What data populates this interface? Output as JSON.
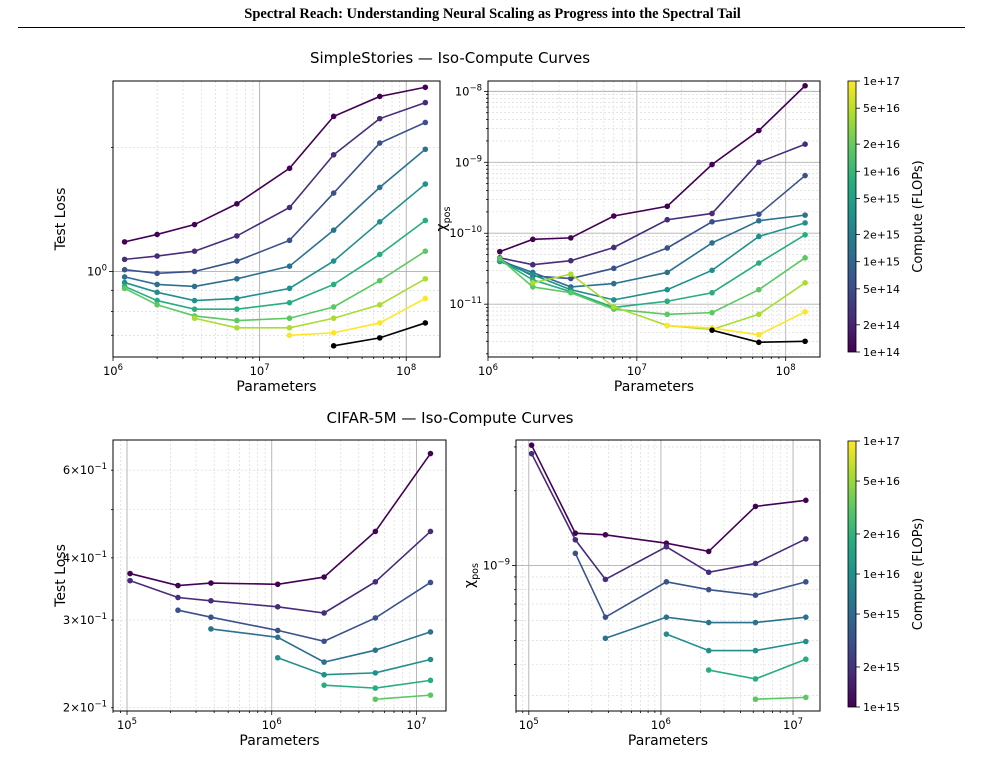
{
  "header": {
    "title": "Spectral Reach: Understanding Neural Scaling as Progress into the Spectral Tail"
  },
  "colors": {
    "series": [
      "#440154",
      "#472c7a",
      "#3b518b",
      "#2c718e",
      "#21908d",
      "#27ad81",
      "#5cc863",
      "#aadc32",
      "#fde725"
    ]
  },
  "chart_data": [
    {
      "id": "ss_loss",
      "type": "line",
      "suptitle": "SimpleStories — Iso-Compute Curves",
      "xlabel": "Parameters",
      "ylabel": "Test Loss",
      "xscale": "log",
      "yscale": "log",
      "xlim": [
        1000000,
        170000000
      ],
      "ylim": [
        0.62,
        2.9
      ],
      "xticks": [
        {
          "v": 1000000,
          "l": "10^6"
        },
        {
          "v": 10000000,
          "l": "10^7"
        },
        {
          "v": 100000000,
          "l": "10^8"
        }
      ],
      "yticks": [
        {
          "v": 1.0,
          "l": "10^0"
        }
      ],
      "grid": true,
      "x": [
        1200000,
        2000000,
        3600000,
        7000000,
        16000000,
        32000000,
        66000000,
        135000000
      ],
      "series": [
        {
          "values": [
            1.18,
            1.23,
            1.3,
            1.46,
            1.78,
            2.38,
            2.66,
            2.8
          ]
        },
        {
          "values": [
            1.07,
            1.09,
            1.12,
            1.22,
            1.43,
            1.92,
            2.35,
            2.57
          ]
        },
        {
          "values": [
            1.01,
            0.99,
            1.0,
            1.06,
            1.19,
            1.55,
            2.05,
            2.3
          ]
        },
        {
          "values": [
            0.97,
            0.93,
            0.92,
            0.96,
            1.03,
            1.26,
            1.6,
            1.98
          ]
        },
        {
          "values": [
            0.94,
            0.89,
            0.85,
            0.86,
            0.91,
            1.06,
            1.32,
            1.63
          ]
        },
        {
          "values": [
            0.92,
            0.85,
            0.81,
            0.81,
            0.84,
            0.93,
            1.1,
            1.33
          ]
        },
        {
          "values": [
            0.91,
            0.83,
            0.78,
            0.76,
            0.77,
            0.82,
            0.95,
            1.12
          ]
        },
        {
          "values": [
            null,
            null,
            0.77,
            0.73,
            0.73,
            0.77,
            0.83,
            0.96
          ]
        },
        {
          "values": [
            null,
            null,
            null,
            null,
            0.7,
            0.71,
            0.75,
            0.86
          ]
        },
        {
          "values": [
            null,
            null,
            null,
            null,
            null,
            0.66,
            0.69,
            0.75
          ]
        }
      ]
    },
    {
      "id": "ss_chi",
      "type": "line",
      "xlabel": "Parameters",
      "ylabel": "χ",
      "ylabel_sub": "pos",
      "xscale": "log",
      "yscale": "log",
      "xlim": [
        1000000,
        170000000
      ],
      "ylim": [
        1.8e-12,
        1.4e-08
      ],
      "xticks": [
        {
          "v": 1000000,
          "l": "10^6"
        },
        {
          "v": 10000000,
          "l": "10^7"
        },
        {
          "v": 100000000,
          "l": "10^8"
        }
      ],
      "yticks": [
        {
          "v": 1e-11,
          "l": "10^-11"
        },
        {
          "v": 1e-10,
          "l": "10^-10"
        },
        {
          "v": 1e-09,
          "l": "10^-9"
        },
        {
          "v": 1e-08,
          "l": "10^-8"
        }
      ],
      "grid": true,
      "x": [
        1200000,
        2000000,
        3600000,
        7000000,
        16000000,
        32000000,
        66000000,
        135000000
      ],
      "series": [
        {
          "values": [
            5.5e-11,
            8.2e-11,
            8.6e-11,
            1.75e-10,
            2.4e-10,
            9.3e-10,
            2.8e-09,
            1.2e-08
          ]
        },
        {
          "values": [
            4.5e-11,
            3.6e-11,
            4.1e-11,
            6.3e-11,
            1.55e-10,
            1.9e-10,
            1e-09,
            1.8e-09
          ]
        },
        {
          "values": [
            4.3e-11,
            2.5e-11,
            2.3e-11,
            3.2e-11,
            6.2e-11,
            1.45e-10,
            1.85e-10,
            6.5e-10
          ]
        },
        {
          "values": [
            4.1e-11,
            2.8e-11,
            1.75e-11,
            1.95e-11,
            2.8e-11,
            7.3e-11,
            1.5e-10,
            1.8e-10
          ]
        },
        {
          "values": [
            4e-11,
            2.6e-11,
            1.6e-11,
            1.15e-11,
            1.6e-11,
            3e-11,
            9e-11,
            1.4e-10
          ]
        },
        {
          "values": [
            4.2e-11,
            2.2e-11,
            1.5e-11,
            9e-12,
            1.1e-11,
            1.45e-11,
            3.8e-11,
            9.5e-11
          ]
        },
        {
          "values": [
            4.4e-11,
            1.75e-11,
            1.45e-11,
            8.5e-12,
            7.2e-12,
            7.6e-12,
            1.6e-11,
            4.5e-11
          ]
        },
        {
          "values": [
            null,
            2e-11,
            2.65e-11,
            9.2e-12,
            5e-12,
            4.4e-12,
            7.2e-12,
            2e-11
          ]
        },
        {
          "values": [
            null,
            null,
            null,
            null,
            5e-12,
            4.6e-12,
            3.7e-12,
            7.8e-12
          ]
        },
        {
          "values": [
            null,
            null,
            null,
            null,
            null,
            4.3e-12,
            2.9e-12,
            3e-12
          ]
        }
      ]
    },
    {
      "id": "cifar_loss",
      "type": "line",
      "suptitle": "CIFAR-5M — Iso-Compute Curves",
      "xlabel": "Parameters",
      "ylabel": "Test Loss",
      "xscale": "log",
      "yscale": "log",
      "xlim": [
        80000,
        16000000
      ],
      "ylim": [
        0.197,
        0.69
      ],
      "xticks": [
        {
          "v": 100000,
          "l": "10^5"
        },
        {
          "v": 1000000,
          "l": "10^6"
        },
        {
          "v": 10000000,
          "l": "10^7"
        }
      ],
      "yticks": [
        {
          "v": 0.2,
          "l": "2×10^-1"
        },
        {
          "v": 0.3,
          "l": "3×10^-1"
        },
        {
          "v": 0.4,
          "l": "4×10^-1"
        },
        {
          "v": 0.6,
          "l": "6×10^-1"
        }
      ],
      "grid": true,
      "x": [
        105000,
        225000,
        380000,
        1100000,
        2300000,
        5200000,
        12500000
      ],
      "series": [
        {
          "values": [
            0.372,
            0.352,
            0.356,
            0.354,
            0.366,
            0.452,
            0.648
          ]
        },
        {
          "values": [
            0.36,
            0.333,
            0.328,
            0.319,
            0.31,
            0.358,
            0.452
          ]
        },
        {
          "values": [
            null,
            0.314,
            0.304,
            0.286,
            0.272,
            0.303,
            0.357
          ]
        },
        {
          "values": [
            null,
            null,
            0.288,
            0.277,
            0.247,
            0.261,
            0.284
          ]
        },
        {
          "values": [
            null,
            null,
            null,
            0.252,
            0.233,
            0.235,
            0.25
          ]
        },
        {
          "values": [
            null,
            null,
            null,
            null,
            0.222,
            0.219,
            0.227
          ]
        },
        {
          "values": [
            null,
            null,
            null,
            null,
            null,
            0.208,
            0.212
          ]
        }
      ]
    },
    {
      "id": "cifar_chi",
      "type": "line",
      "xlabel": "Parameters",
      "ylabel": "χ",
      "ylabel_sub": "pos",
      "xscale": "log",
      "yscale": "log",
      "xlim": [
        80000,
        16000000
      ],
      "ylim": [
        2.6e-10,
        3.2e-09
      ],
      "xticks": [
        {
          "v": 100000,
          "l": "10^5"
        },
        {
          "v": 1000000,
          "l": "10^6"
        },
        {
          "v": 10000000,
          "l": "10^7"
        }
      ],
      "yticks": [
        {
          "v": 1e-09,
          "l": "10^-9"
        }
      ],
      "grid": true,
      "x": [
        105000,
        225000,
        380000,
        1100000,
        2300000,
        5200000,
        12500000
      ],
      "series": [
        {
          "values": [
            3.05e-09,
            1.35e-09,
            1.33e-09,
            1.23e-09,
            1.14e-09,
            1.73e-09,
            1.83e-09
          ]
        },
        {
          "values": [
            2.82e-09,
            1.27e-09,
            8.8e-10,
            1.19e-09,
            9.4e-10,
            1.02e-09,
            1.28e-09
          ]
        },
        {
          "values": [
            null,
            1.12e-09,
            6.2e-10,
            8.6e-10,
            8e-10,
            7.6e-10,
            8.6e-10
          ]
        },
        {
          "values": [
            null,
            null,
            5.1e-10,
            6.2e-10,
            5.9e-10,
            5.9e-10,
            6.2e-10
          ]
        },
        {
          "values": [
            null,
            null,
            null,
            5.3e-10,
            4.55e-10,
            4.55e-10,
            4.95e-10
          ]
        },
        {
          "values": [
            null,
            null,
            null,
            null,
            3.8e-10,
            3.5e-10,
            4.2e-10
          ]
        },
        {
          "values": [
            null,
            null,
            null,
            null,
            null,
            2.9e-10,
            2.95e-10
          ]
        }
      ]
    }
  ],
  "colorbars": [
    {
      "label": "Compute (FLOPs)",
      "min": 100000000000000.0,
      "max": 1e+17,
      "ticks": [
        {
          "v": 1e+17,
          "l": "1e+17"
        },
        {
          "v": 5e+16,
          "l": "5e+16"
        },
        {
          "v": 2e+16,
          "l": "2e+16"
        },
        {
          "v": 1e+16,
          "l": "1e+16"
        },
        {
          "v": 5000000000000000.0,
          "l": "5e+15"
        },
        {
          "v": 2000000000000000.0,
          "l": "2e+15"
        },
        {
          "v": 1000000000000000.0,
          "l": "1e+15"
        },
        {
          "v": 500000000000000.0,
          "l": "5e+14"
        },
        {
          "v": 200000000000000.0,
          "l": "2e+14"
        },
        {
          "v": 100000000000000.0,
          "l": "1e+14"
        }
      ]
    },
    {
      "label": "Compute (FLOPs)",
      "min": 1000000000000000.0,
      "max": 1e+17,
      "ticks": [
        {
          "v": 1e+17,
          "l": "1e+17"
        },
        {
          "v": 5e+16,
          "l": "5e+16"
        },
        {
          "v": 2e+16,
          "l": "2e+16"
        },
        {
          "v": 1e+16,
          "l": "1e+16"
        },
        {
          "v": 5000000000000000.0,
          "l": "5e+15"
        },
        {
          "v": 2000000000000000.0,
          "l": "2e+15"
        },
        {
          "v": 1000000000000000.0,
          "l": "1e+15"
        }
      ]
    }
  ]
}
